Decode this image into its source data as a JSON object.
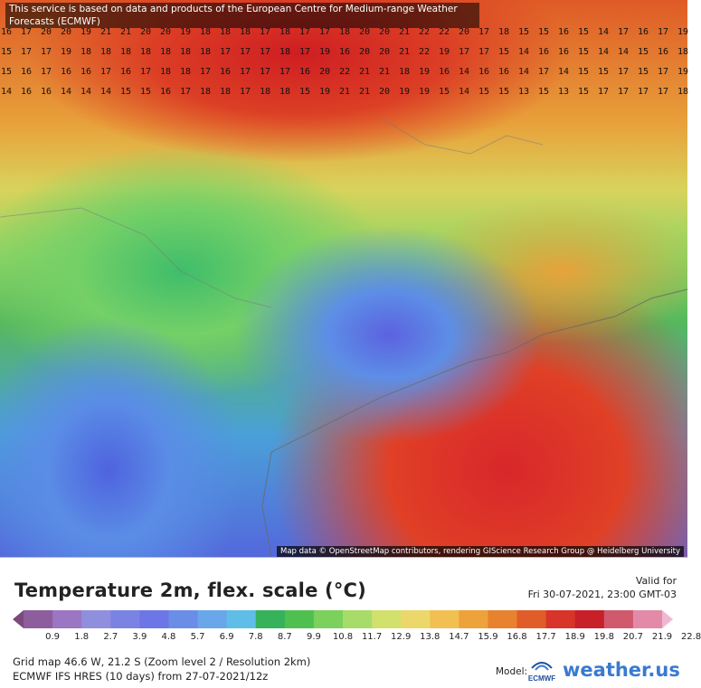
{
  "attribution_top": "This service is based on data and products of the European Centre for Medium-range Weather Forecasts (ECMWF)",
  "attribution_bottom": "Map data © OpenStreetMap contributors, rendering GIScience Research Group @ Heidelberg University",
  "title": "Temperature 2m, flex. scale (°C)",
  "valid_label": "Valid for",
  "valid_time": "Fri 30-07-2021, 23:00 GMT-03",
  "scale_labels": [
    "0.9",
    "1.8",
    "2.7",
    "3.9",
    "4.8",
    "5.7",
    "6.9",
    "7.8",
    "8.7",
    "9.9",
    "10.8",
    "11.7",
    "12.9",
    "13.8",
    "14.7",
    "15.9",
    "16.8",
    "17.7",
    "18.9",
    "19.8",
    "20.7",
    "21.9",
    "22.8"
  ],
  "scale_colors": [
    "#7a4a7a",
    "#8e5d9e",
    "#9b76c2",
    "#8f8fde",
    "#7a83e4",
    "#6d76e6",
    "#6a8de8",
    "#6aa6ea",
    "#5fbde8",
    "#36b25a",
    "#4fc04f",
    "#7cd05c",
    "#a8dc6a",
    "#d2e06c",
    "#ecd86a",
    "#f2c052",
    "#eea23a",
    "#e8822e",
    "#e05c28",
    "#d8342a",
    "#c81f28",
    "#d0596e",
    "#e28aa8",
    "#f0b8d0"
  ],
  "grid_info": "Grid map 46.6 W, 21.2 S (Zoom level 2 / Resolution 2km)",
  "model_info": "ECMWF IFS HRES (10 days) from 27-07-2021/12z",
  "model_label": "Model:",
  "model_logo_text": "ECMWF",
  "brand": "weather.",
  "brand_tld": "us",
  "grid_rows": [
    [
      "16",
      "17",
      "20",
      "20",
      "19",
      "21",
      "21",
      "20",
      "20",
      "19",
      "18",
      "18",
      "18",
      "17",
      "18",
      "17",
      "17",
      "18",
      "20",
      "20",
      "21",
      "22",
      "22",
      "20",
      "17",
      "18",
      "15",
      "15",
      "16",
      "15",
      "14",
      "17",
      "16",
      "17",
      "19"
    ],
    [
      "15",
      "17",
      "17",
      "19",
      "18",
      "18",
      "18",
      "18",
      "18",
      "18",
      "18",
      "17",
      "17",
      "17",
      "18",
      "17",
      "19",
      "16",
      "20",
      "20",
      "21",
      "22",
      "19",
      "17",
      "17",
      "15",
      "14",
      "16",
      "16",
      "15",
      "14",
      "14",
      "15",
      "16",
      "18"
    ],
    [
      "15",
      "16",
      "17",
      "16",
      "16",
      "17",
      "16",
      "17",
      "18",
      "18",
      "17",
      "16",
      "17",
      "17",
      "17",
      "16",
      "20",
      "22",
      "21",
      "21",
      "18",
      "19",
      "16",
      "14",
      "16",
      "16",
      "14",
      "17",
      "14",
      "15",
      "15",
      "17",
      "15",
      "17",
      "19"
    ],
    [
      "14",
      "16",
      "16",
      "14",
      "14",
      "14",
      "15",
      "15",
      "16",
      "17",
      "18",
      "18",
      "17",
      "18",
      "18",
      "15",
      "19",
      "21",
      "21",
      "20",
      "19",
      "19",
      "15",
      "14",
      "15",
      "15",
      "13",
      "15",
      "13",
      "15",
      "17",
      "17",
      "17",
      "17",
      "18"
    ]
  ]
}
